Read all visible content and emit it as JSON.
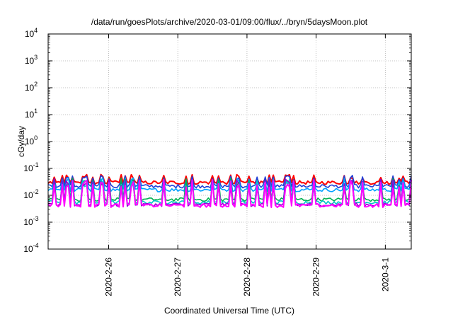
{
  "chart_data": {
    "type": "line",
    "title": "/data/run/goesPlots/archive/2020-03-01/09:00/flux/../bryn/5daysMoon.plot",
    "xlabel": "Coordinated Universal Time (UTC)",
    "ylabel": "cGy/day",
    "y_scale": "log",
    "ylim": [
      0.0001,
      10000
    ],
    "xlim": [
      "2020-02-25T03:00",
      "2020-03-01T09:00"
    ],
    "x_ticks": [
      {
        "date": "2020-02-26T00:00",
        "label": "2020-2-26"
      },
      {
        "date": "2020-02-27T00:00",
        "label": "2020-2-27"
      },
      {
        "date": "2020-02-28T00:00",
        "label": "2020-2-28"
      },
      {
        "date": "2020-02-29T00:00",
        "label": "2020-2-29"
      },
      {
        "date": "2020-03-01T00:00",
        "label": "2020-3-1"
      }
    ],
    "y_ticks": [
      {
        "value": 0.0001,
        "base": "10",
        "exp": "-4"
      },
      {
        "value": 0.001,
        "base": "10",
        "exp": "-3"
      },
      {
        "value": 0.01,
        "base": "10",
        "exp": "-2"
      },
      {
        "value": 0.1,
        "base": "10",
        "exp": "-1"
      },
      {
        "value": 1,
        "base": "10",
        "exp": "0"
      },
      {
        "value": 10,
        "base": "10",
        "exp": "1"
      },
      {
        "value": 100,
        "base": "10",
        "exp": "2"
      },
      {
        "value": 1000,
        "base": "10",
        "exp": "3"
      },
      {
        "value": 10000,
        "base": "10",
        "exp": "4"
      }
    ],
    "grid": true,
    "series": [
      {
        "color": "#ff0000",
        "baseline": 0.03,
        "spike_max": 0.06
      },
      {
        "color": "#1f3fd8",
        "baseline": 0.022,
        "spike_max": 0.055
      },
      {
        "color": "#00a0ff",
        "baseline": 0.016,
        "spike_max": 0.045
      },
      {
        "color": "#00b050",
        "baseline": 0.007,
        "spike_max": 0.045
      },
      {
        "color": "#00c8c8",
        "baseline": 0.0055,
        "spike_max": 0.04
      },
      {
        "color": "#9400d3",
        "baseline": 0.0045,
        "spike_max": 0.04
      },
      {
        "color": "#ff00ff",
        "baseline": 0.0042,
        "spike_max": 0.038
      }
    ]
  }
}
